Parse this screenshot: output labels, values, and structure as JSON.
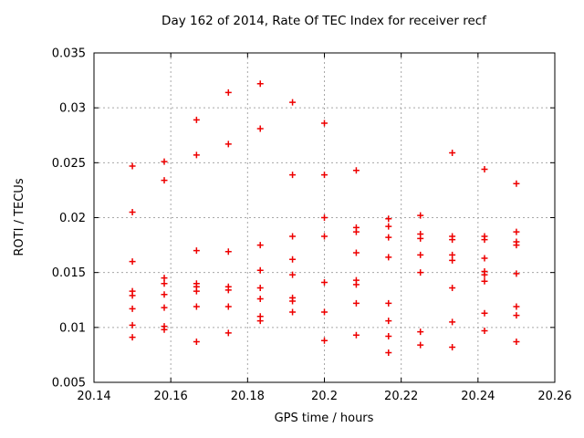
{
  "chart_data": {
    "type": "scatter",
    "title": "Day 162 of 2014, Rate Of TEC Index for receiver recf",
    "xlabel": "GPS time / hours",
    "ylabel": "ROTI / TECUs",
    "xlim": [
      20.14,
      20.26
    ],
    "ylim": [
      0.005,
      0.035
    ],
    "xticks": {
      "values": [
        20.14,
        20.16,
        20.18,
        20.2,
        20.22,
        20.24,
        20.26
      ],
      "labels": [
        "20.14",
        "20.16",
        "20.18",
        "20.2",
        "20.22",
        "20.24",
        "20.26"
      ]
    },
    "yticks": {
      "values": [
        0.005,
        0.01,
        0.015,
        0.02,
        0.025,
        0.03,
        0.035
      ],
      "labels": [
        "0.005",
        "0.01",
        "0.015",
        "0.02",
        "0.025",
        "0.03",
        "0.035"
      ]
    },
    "grid": true,
    "legend_position": "none",
    "marker": {
      "shape": "plus",
      "color": "#ee0000",
      "size": 7
    },
    "series": [
      {
        "name": "ROTI",
        "points": [
          [
            20.15,
            0.0247
          ],
          [
            20.15,
            0.0205
          ],
          [
            20.15,
            0.016
          ],
          [
            20.15,
            0.0133
          ],
          [
            20.15,
            0.0129
          ],
          [
            20.15,
            0.0117
          ],
          [
            20.15,
            0.0102
          ],
          [
            20.15,
            0.0091
          ],
          [
            20.1583,
            0.0251
          ],
          [
            20.1583,
            0.0234
          ],
          [
            20.1583,
            0.0145
          ],
          [
            20.1583,
            0.014
          ],
          [
            20.1583,
            0.013
          ],
          [
            20.1583,
            0.0118
          ],
          [
            20.1583,
            0.0101
          ],
          [
            20.1583,
            0.0098
          ],
          [
            20.1667,
            0.0289
          ],
          [
            20.1667,
            0.0257
          ],
          [
            20.1667,
            0.017
          ],
          [
            20.1667,
            0.014
          ],
          [
            20.1667,
            0.0137
          ],
          [
            20.1667,
            0.0133
          ],
          [
            20.1667,
            0.0119
          ],
          [
            20.1667,
            0.0087
          ],
          [
            20.175,
            0.0314
          ],
          [
            20.175,
            0.0267
          ],
          [
            20.175,
            0.0169
          ],
          [
            20.175,
            0.0137
          ],
          [
            20.175,
            0.0134
          ],
          [
            20.175,
            0.0119
          ],
          [
            20.175,
            0.0095
          ],
          [
            20.1833,
            0.0322
          ],
          [
            20.1833,
            0.0281
          ],
          [
            20.1833,
            0.0175
          ],
          [
            20.1833,
            0.0152
          ],
          [
            20.1833,
            0.0136
          ],
          [
            20.1833,
            0.0126
          ],
          [
            20.1833,
            0.011
          ],
          [
            20.1833,
            0.0106
          ],
          [
            20.1917,
            0.0305
          ],
          [
            20.1917,
            0.0239
          ],
          [
            20.1917,
            0.0183
          ],
          [
            20.1917,
            0.0162
          ],
          [
            20.1917,
            0.0148
          ],
          [
            20.1917,
            0.0127
          ],
          [
            20.1917,
            0.0124
          ],
          [
            20.1917,
            0.0114
          ],
          [
            20.2,
            0.0286
          ],
          [
            20.2,
            0.0239
          ],
          [
            20.2,
            0.02
          ],
          [
            20.2,
            0.0183
          ],
          [
            20.2,
            0.0141
          ],
          [
            20.2,
            0.0114
          ],
          [
            20.2,
            0.0088
          ],
          [
            20.2083,
            0.0243
          ],
          [
            20.2083,
            0.0191
          ],
          [
            20.2083,
            0.0187
          ],
          [
            20.2083,
            0.0168
          ],
          [
            20.2083,
            0.0143
          ],
          [
            20.2083,
            0.0139
          ],
          [
            20.2083,
            0.0122
          ],
          [
            20.2083,
            0.0093
          ],
          [
            20.2167,
            0.0199
          ],
          [
            20.2167,
            0.0192
          ],
          [
            20.2167,
            0.0182
          ],
          [
            20.2167,
            0.0164
          ],
          [
            20.2167,
            0.0122
          ],
          [
            20.2167,
            0.0106
          ],
          [
            20.2167,
            0.0092
          ],
          [
            20.2167,
            0.0077
          ],
          [
            20.225,
            0.0202
          ],
          [
            20.225,
            0.0185
          ],
          [
            20.225,
            0.0181
          ],
          [
            20.225,
            0.0166
          ],
          [
            20.225,
            0.015
          ],
          [
            20.225,
            0.0096
          ],
          [
            20.225,
            0.0084
          ],
          [
            20.2333,
            0.0259
          ],
          [
            20.2333,
            0.0183
          ],
          [
            20.2333,
            0.018
          ],
          [
            20.2333,
            0.0166
          ],
          [
            20.2333,
            0.0161
          ],
          [
            20.2333,
            0.0136
          ],
          [
            20.2333,
            0.0105
          ],
          [
            20.2333,
            0.0082
          ],
          [
            20.2417,
            0.0244
          ],
          [
            20.2417,
            0.0183
          ],
          [
            20.2417,
            0.018
          ],
          [
            20.2417,
            0.0163
          ],
          [
            20.2417,
            0.0151
          ],
          [
            20.2417,
            0.0148
          ],
          [
            20.2417,
            0.0142
          ],
          [
            20.2417,
            0.0113
          ],
          [
            20.2417,
            0.0097
          ],
          [
            20.25,
            0.0231
          ],
          [
            20.25,
            0.0187
          ],
          [
            20.25,
            0.0178
          ],
          [
            20.25,
            0.0175
          ],
          [
            20.25,
            0.0149
          ],
          [
            20.25,
            0.0119
          ],
          [
            20.25,
            0.0111
          ],
          [
            20.25,
            0.0087
          ]
        ]
      }
    ]
  },
  "styles": {
    "background": "#ffffff",
    "border_color": "#000000",
    "grid_color": "#a8a8a8",
    "text_color": "#000000",
    "marker_color": "#ee0000"
  }
}
